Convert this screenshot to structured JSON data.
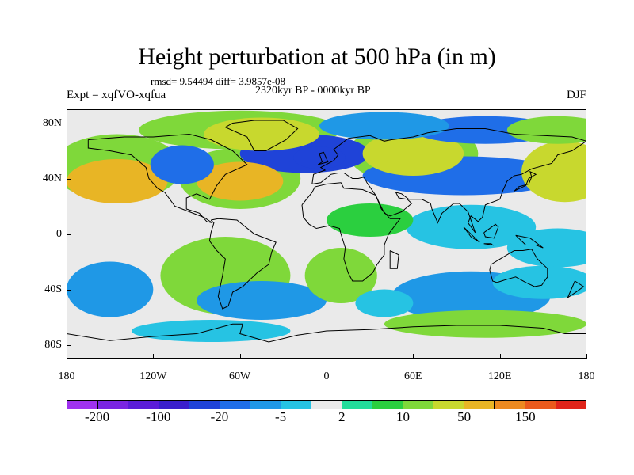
{
  "chart_data": {
    "type": "heatmap",
    "title": "Height perturbation at 500 hPa (in m)",
    "stats": "rmsd= 9.54494 diff= 3.9857e-08",
    "period": "2320kyr BP - 0000kyr BP",
    "experiment": "Expt = xqfVO-xqfua",
    "season": "DJF",
    "xlabel": "",
    "ylabel": "",
    "xlim": [
      -180,
      180
    ],
    "ylim": [
      -90,
      90
    ],
    "x_ticks": [
      {
        "value": -180,
        "label": "180"
      },
      {
        "value": -120,
        "label": "120W"
      },
      {
        "value": -60,
        "label": "60W"
      },
      {
        "value": 0,
        "label": "0"
      },
      {
        "value": 60,
        "label": "60E"
      },
      {
        "value": 120,
        "label": "120E"
      },
      {
        "value": 180,
        "label": "180"
      }
    ],
    "y_ticks": [
      {
        "value": 80,
        "label": "80N"
      },
      {
        "value": 40,
        "label": "40N"
      },
      {
        "value": 0,
        "label": "0"
      },
      {
        "value": -40,
        "label": "40S"
      },
      {
        "value": -80,
        "label": "80S"
      }
    ],
    "colorbar": {
      "colors": [
        "#9f32f0",
        "#7a25e2",
        "#5b1dd8",
        "#3a1fcc",
        "#1f43d8",
        "#1f6ee8",
        "#1f98e6",
        "#26c3e3",
        "#eaeaea",
        "#22dd9b",
        "#2bcf3f",
        "#7fd83a",
        "#c8d82e",
        "#e8b525",
        "#ed8a20",
        "#ea5a1c",
        "#e0241a"
      ],
      "labels": [
        {
          "boundary": 1,
          "text": "-200"
        },
        {
          "boundary": 3,
          "text": "-100"
        },
        {
          "boundary": 5,
          "text": "-20"
        },
        {
          "boundary": 7,
          "text": "-5"
        },
        {
          "boundary": 9,
          "text": "2"
        },
        {
          "boundary": 11,
          "text": "10"
        },
        {
          "boundary": 13,
          "text": "50"
        },
        {
          "boundary": 15,
          "text": "150"
        }
      ]
    },
    "field_blobs": [
      {
        "lon": -145,
        "lat": 38,
        "rx": 35,
        "ry": 16,
        "value": 55
      },
      {
        "lon": -145,
        "lat": 48,
        "rx": 45,
        "ry": 24,
        "value": 15
      },
      {
        "lon": -100,
        "lat": 50,
        "rx": 22,
        "ry": 14,
        "value": -15
      },
      {
        "lon": -60,
        "lat": 38,
        "rx": 30,
        "ry": 14,
        "value": 50
      },
      {
        "lon": -60,
        "lat": 40,
        "rx": 42,
        "ry": 22,
        "value": 15
      },
      {
        "lon": -45,
        "lat": 72,
        "rx": 40,
        "ry": 12,
        "value": 35
      },
      {
        "lon": -60,
        "lat": 75,
        "rx": 70,
        "ry": 14,
        "value": 12
      },
      {
        "lon": -15,
        "lat": 58,
        "rx": 45,
        "ry": 14,
        "value": -25
      },
      {
        "lon": -5,
        "lat": 55,
        "rx": 18,
        "ry": 8,
        "value": -40
      },
      {
        "lon": 40,
        "lat": 78,
        "rx": 45,
        "ry": 10,
        "value": -10
      },
      {
        "lon": 60,
        "lat": 58,
        "rx": 35,
        "ry": 16,
        "value": 40
      },
      {
        "lon": 60,
        "lat": 58,
        "rx": 45,
        "ry": 22,
        "value": 12
      },
      {
        "lon": 95,
        "lat": 42,
        "rx": 70,
        "ry": 14,
        "value": -20
      },
      {
        "lon": 110,
        "lat": 75,
        "rx": 50,
        "ry": 10,
        "value": -15
      },
      {
        "lon": 165,
        "lat": 45,
        "rx": 30,
        "ry": 22,
        "value": 45
      },
      {
        "lon": 160,
        "lat": 75,
        "rx": 35,
        "ry": 10,
        "value": 12
      },
      {
        "lon": 30,
        "lat": 10,
        "rx": 30,
        "ry": 12,
        "value": 5
      },
      {
        "lon": 100,
        "lat": 5,
        "rx": 45,
        "ry": 16,
        "value": -4
      },
      {
        "lon": 160,
        "lat": -10,
        "rx": 35,
        "ry": 14,
        "value": -3
      },
      {
        "lon": -150,
        "lat": -40,
        "rx": 30,
        "ry": 20,
        "value": -10
      },
      {
        "lon": -70,
        "lat": -30,
        "rx": 45,
        "ry": 28,
        "value": 15
      },
      {
        "lon": -45,
        "lat": -48,
        "rx": 45,
        "ry": 14,
        "value": -10
      },
      {
        "lon": 10,
        "lat": -30,
        "rx": 25,
        "ry": 20,
        "value": 10
      },
      {
        "lon": 40,
        "lat": -50,
        "rx": 20,
        "ry": 10,
        "value": -5
      },
      {
        "lon": 100,
        "lat": -45,
        "rx": 55,
        "ry": 18,
        "value": -8
      },
      {
        "lon": 150,
        "lat": -35,
        "rx": 35,
        "ry": 12,
        "value": -4
      },
      {
        "lon": 110,
        "lat": -65,
        "rx": 70,
        "ry": 10,
        "value": 12
      },
      {
        "lon": -80,
        "lat": -70,
        "rx": 55,
        "ry": 8,
        "value": -3
      }
    ],
    "contour_levels": [
      -1000,
      -200,
      -150,
      -100,
      -50,
      -20,
      -10,
      -5,
      -2,
      2,
      5,
      10,
      20,
      50,
      100,
      150,
      200,
      1000
    ]
  }
}
